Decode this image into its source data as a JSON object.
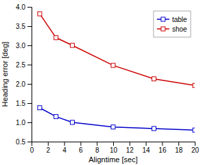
{
  "chart_data": {
    "type": "line",
    "x": [
      1,
      3,
      5,
      10,
      15,
      20
    ],
    "series": [
      {
        "name": "table",
        "color": "#0000cc",
        "marker": "square",
        "values": [
          1.38,
          1.15,
          1.0,
          0.88,
          0.84,
          0.8
        ]
      },
      {
        "name": "shoe",
        "color": "#cc0000",
        "marker": "square",
        "values": [
          3.82,
          3.2,
          3.0,
          2.48,
          2.13,
          1.96
        ]
      }
    ],
    "x_label": "Aligntime [sec]",
    "y_label": "Heading error [deg]",
    "xlim": [
      0,
      20
    ],
    "ylim": [
      0.5,
      4.0
    ],
    "xticks": [
      0,
      2,
      4,
      6,
      8,
      10,
      12,
      14,
      16,
      18,
      20
    ],
    "yticks": [
      0.5,
      {
        "value": 1,
        "label": "1.0"
      },
      1.5,
      {
        "value": 2,
        "label": "2.0"
      },
      2.5,
      {
        "value": 3,
        "label": "3.0"
      },
      3.5,
      {
        "value": 4,
        "label": "4.0"
      }
    ],
    "grid": false,
    "legend": "upper-right"
  }
}
